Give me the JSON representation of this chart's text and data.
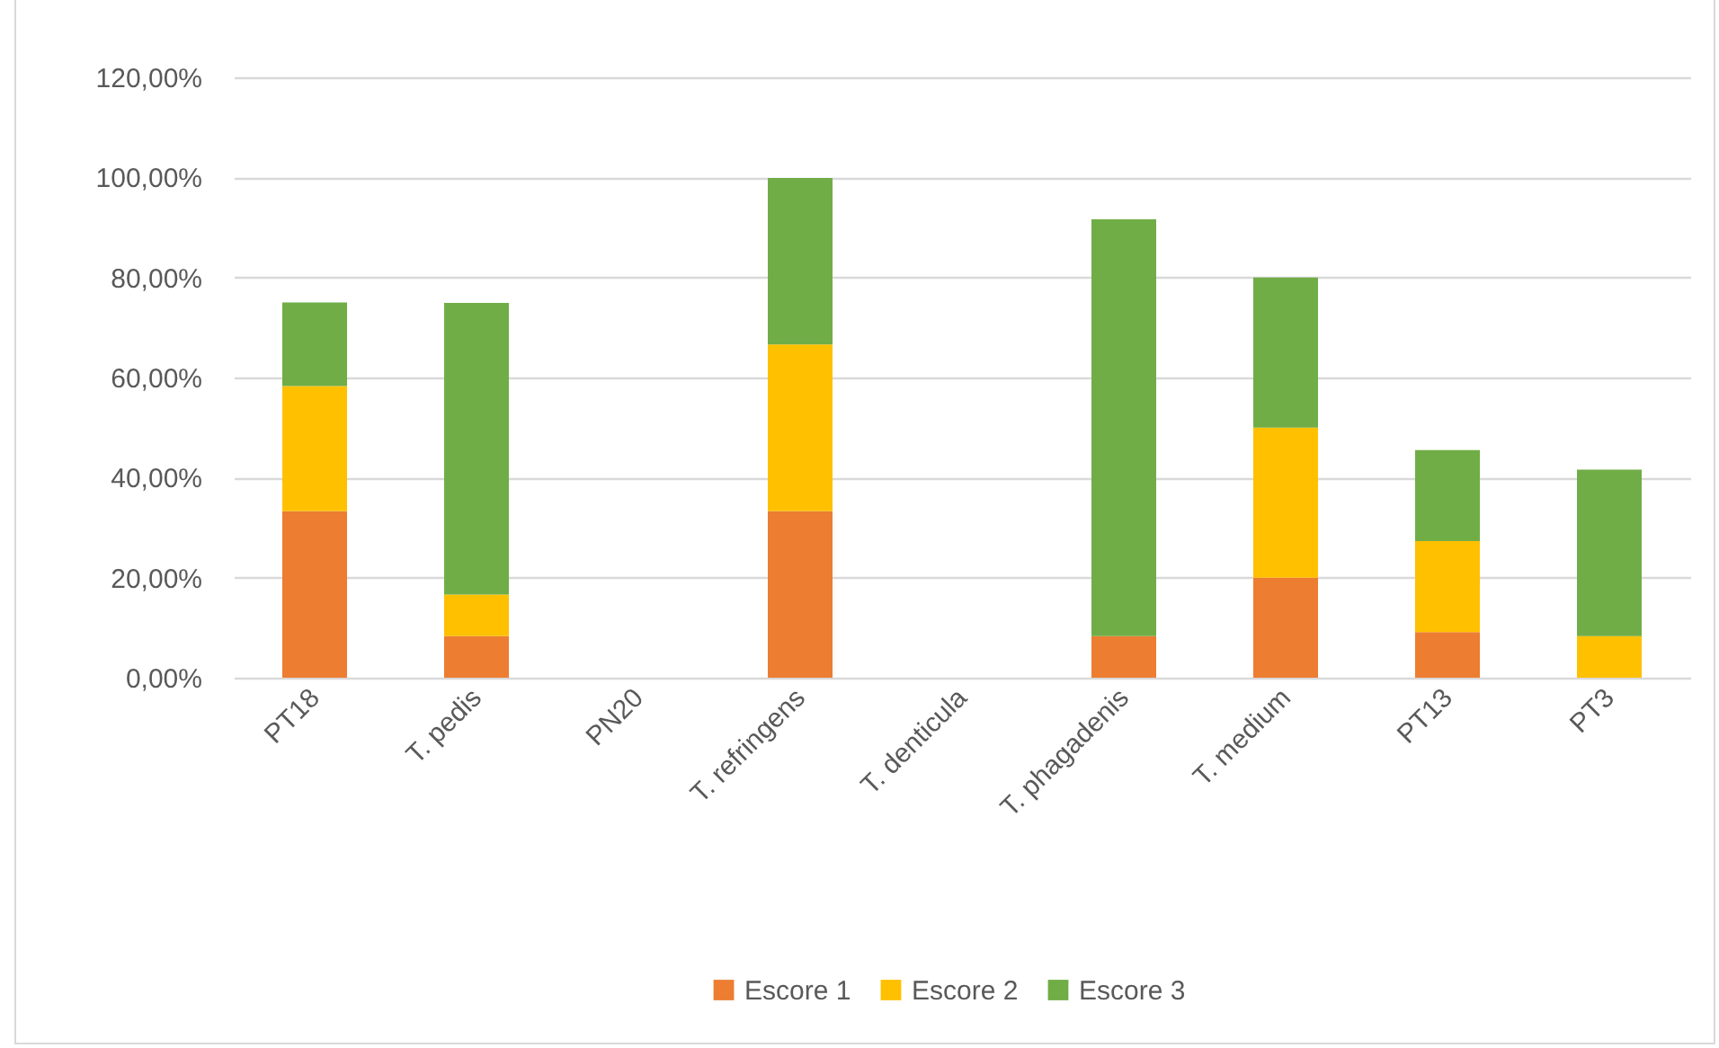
{
  "chart_data": {
    "type": "bar",
    "stacked": true,
    "categories": [
      "PT18",
      "T. pedis",
      "PN20",
      "T. refringens",
      "T. denticula",
      "T. phagadenis",
      "T. medium",
      "PT13",
      "PT3"
    ],
    "series": [
      {
        "name": "Escore 1",
        "color": "#ed7d31",
        "values": [
          33.3,
          8.3,
          0,
          33.3,
          0,
          8.3,
          20,
          9.1,
          0
        ]
      },
      {
        "name": "Escore 2",
        "color": "#ffc000",
        "values": [
          25,
          8.3,
          0,
          33.3,
          0,
          0,
          30,
          18.2,
          8.3
        ]
      },
      {
        "name": "Escore 3",
        "color": "#70ad47",
        "values": [
          16.7,
          58.3,
          0,
          33.3,
          0,
          83.3,
          30,
          18.2,
          33.3
        ]
      }
    ],
    "ylim": [
      0,
      120
    ],
    "yticks": [
      {
        "value": 0,
        "label": "0,00%"
      },
      {
        "value": 20,
        "label": "20,00%"
      },
      {
        "value": 40,
        "label": "40,00%"
      },
      {
        "value": 60,
        "label": "60,00%"
      },
      {
        "value": 80,
        "label": "80,00%"
      },
      {
        "value": 100,
        "label": "100,00%"
      },
      {
        "value": 120,
        "label": "120,00%"
      }
    ],
    "grid": "y",
    "legend": "bottom"
  }
}
